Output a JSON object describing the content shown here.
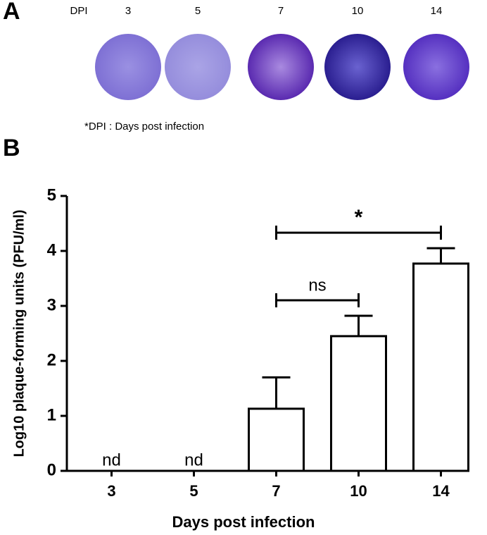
{
  "panel_a": {
    "label": "A",
    "header": "DPI",
    "days": [
      "3",
      "5",
      "7",
      "10",
      "14"
    ],
    "footnote": "*DPI : Days post infection"
  },
  "panel_b_label": "B",
  "chart_data": {
    "type": "bar",
    "x_label": "Days post infection",
    "y_label": "Log10 plaque-forming units (PFU/ml)",
    "categories": [
      "3",
      "5",
      "7",
      "10",
      "14"
    ],
    "values": [
      null,
      null,
      1.13,
      2.45,
      3.77
    ],
    "value_labels": [
      "nd",
      "nd",
      null,
      null,
      null
    ],
    "errors": [
      null,
      null,
      0.57,
      0.37,
      0.28
    ],
    "color": "#ffffff",
    "ylim": [
      0,
      5
    ],
    "yticks": [
      0,
      1,
      2,
      3,
      4,
      5
    ],
    "annotations": [
      {
        "text": "ns",
        "from": "7",
        "to": "10"
      },
      {
        "text": "*",
        "from": "7",
        "to": "14"
      }
    ]
  }
}
